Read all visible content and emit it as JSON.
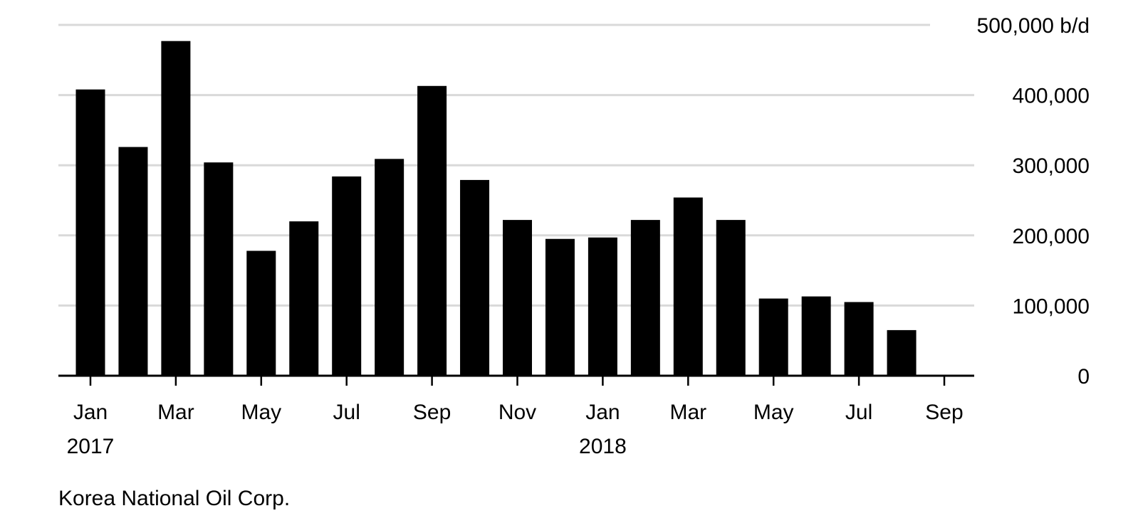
{
  "chart_data": {
    "type": "bar",
    "title": "",
    "xlabel": "",
    "ylabel": "",
    "y_unit": "b/d",
    "ylim": [
      0,
      500000
    ],
    "y_ticks": [
      {
        "value": 0,
        "label": "0"
      },
      {
        "value": 100000,
        "label": "100,000"
      },
      {
        "value": 200000,
        "label": "200,000"
      },
      {
        "value": 300000,
        "label": "300,000"
      },
      {
        "value": 400000,
        "label": "400,000"
      },
      {
        "value": 500000,
        "label": "500,000 b/d"
      }
    ],
    "grid": true,
    "bar_color": "#000000",
    "categories": [
      "2017-01",
      "2017-02",
      "2017-03",
      "2017-04",
      "2017-05",
      "2017-06",
      "2017-07",
      "2017-08",
      "2017-09",
      "2017-10",
      "2017-11",
      "2017-12",
      "2018-01",
      "2018-02",
      "2018-03",
      "2018-04",
      "2018-05",
      "2018-06",
      "2018-07",
      "2018-08",
      "2018-09"
    ],
    "values": [
      408000,
      326000,
      477000,
      304000,
      178000,
      220000,
      284000,
      309000,
      413000,
      279000,
      222000,
      195000,
      197000,
      222000,
      254000,
      222000,
      110000,
      113000,
      105000,
      65000,
      1000
    ],
    "x_ticks": [
      {
        "index": 0,
        "label": "Jan",
        "sublabel": "2017"
      },
      {
        "index": 2,
        "label": "Mar"
      },
      {
        "index": 4,
        "label": "May"
      },
      {
        "index": 6,
        "label": "Jul"
      },
      {
        "index": 8,
        "label": "Sep"
      },
      {
        "index": 10,
        "label": "Nov"
      },
      {
        "index": 12,
        "label": "Jan",
        "sublabel": "2018"
      },
      {
        "index": 14,
        "label": "Mar"
      },
      {
        "index": 16,
        "label": "May"
      },
      {
        "index": 18,
        "label": "Jul"
      },
      {
        "index": 20,
        "label": "Sep"
      }
    ]
  },
  "source": "Korea National Oil Corp.",
  "colors": {
    "grid": "#d9d9d9",
    "axis": "#000000",
    "bar": "#000000"
  }
}
